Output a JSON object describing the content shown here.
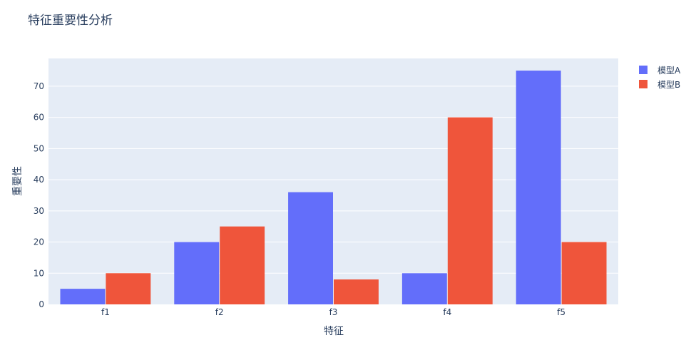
{
  "chart_data": {
    "type": "bar",
    "title": "特征重要性分析",
    "xlabel": "特征",
    "ylabel": "重要性",
    "categories": [
      "f1",
      "f2",
      "f3",
      "f4",
      "f5"
    ],
    "series": [
      {
        "name": "模型A",
        "values": [
          5,
          20,
          36,
          10,
          75
        ],
        "color": "#636efa"
      },
      {
        "name": "模型B",
        "values": [
          10,
          25,
          8,
          60,
          20
        ],
        "color": "#ef553b"
      }
    ],
    "y_ticks": [
      0,
      10,
      20,
      30,
      40,
      50,
      60,
      70
    ],
    "ylim": [
      0,
      78.9
    ],
    "grid": true,
    "legend_position": "top-right",
    "plot_background": "#e5ecf6"
  }
}
